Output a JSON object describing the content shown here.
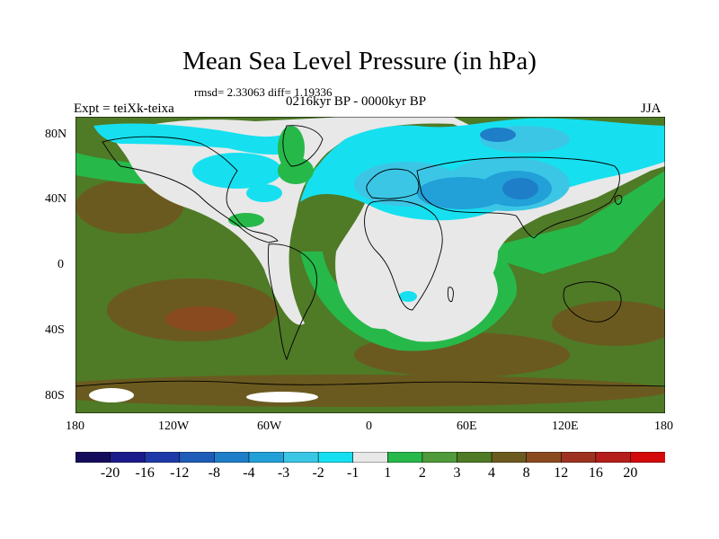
{
  "title": "Mean Sea Level Pressure (in hPa)",
  "stats_line": "rmsd= 2.33063 diff= 1.19336",
  "expt_label": "Expt = teiXk-teixa",
  "period_label": "0216kyr BP - 0000kyr BP",
  "season_label": "JJA",
  "lon_ticks": [
    "180",
    "120W",
    "60W",
    "0",
    "60E",
    "120E",
    "180"
  ],
  "lat_ticks": [
    "80N",
    "40N",
    "0",
    "40S",
    "80S"
  ],
  "colorbar": {
    "colors": [
      "#150d5b",
      "#1b1b8c",
      "#1f3aa8",
      "#1f5cb8",
      "#1e7ec8",
      "#22a0d8",
      "#3cc6e6",
      "#16e0f0",
      "#e8e8e8",
      "#27b84a",
      "#4f9a3a",
      "#4f7a26",
      "#6b5a1f",
      "#8a4a1f",
      "#9e3220",
      "#b51e1a",
      "#d40a0a"
    ],
    "labels": [
      "-20",
      "-16",
      "-12",
      "-8",
      "-4",
      "-3",
      "-2",
      "-1",
      "1",
      "2",
      "3",
      "4",
      "8",
      "12",
      "16",
      "20"
    ]
  },
  "palette": {
    "neutral": "#e8e8e8",
    "cyan": "#16e0f0",
    "light_blue": "#3cc6e6",
    "blue": "#22a0d8",
    "dark_blue": "#1e7ec8",
    "green": "#27b84a",
    "mid_green": "#4f9a3a",
    "olive": "#4f7a26",
    "brown": "#6b5a1f",
    "dark_brown": "#8a4a1f"
  }
}
